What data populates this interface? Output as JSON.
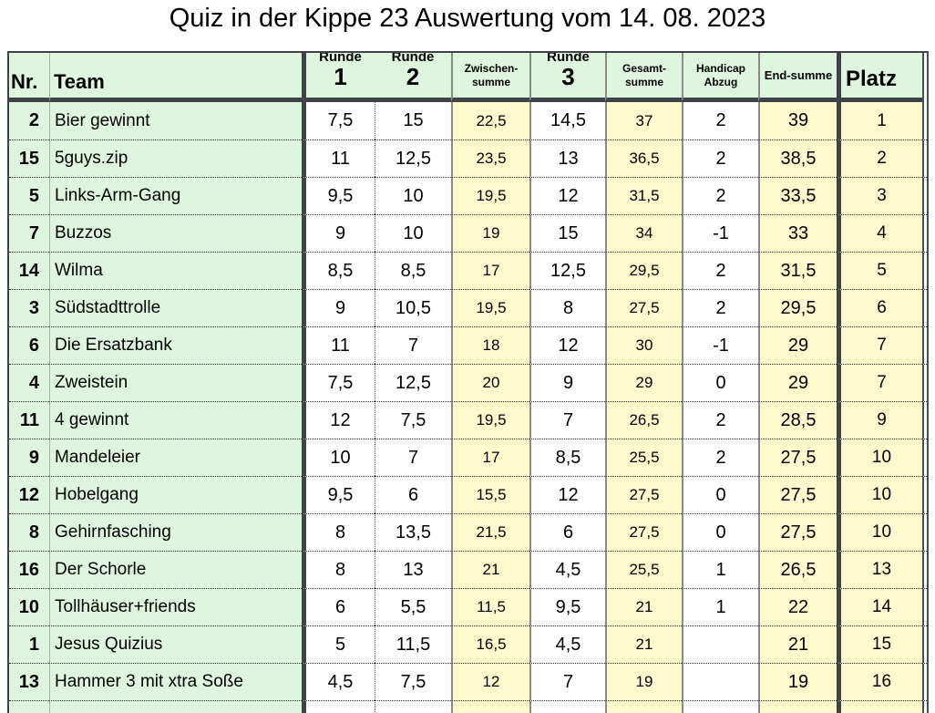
{
  "title": "Quiz in der Kippe 23 Auswertung vom 14. 08. 2023",
  "colors": {
    "header_green": "#ddf6dd",
    "cell_yellow": "#fdfacd",
    "thick_border": "#3f4347"
  },
  "table": {
    "headers": {
      "nr": "Nr.",
      "team": "Team",
      "runde_word": "Runde",
      "runde1_num": "1",
      "runde2_num": "2",
      "runde3_num": "3",
      "zwischen": [
        "Zwischen-",
        "summe"
      ],
      "gesamt": [
        "Gesamt-",
        "summe"
      ],
      "handicap": [
        "Handicap",
        "Abzug"
      ],
      "end": "End-summe",
      "platz": "Platz"
    },
    "col_keys": [
      "nr",
      "team",
      "r1",
      "r2",
      "zw",
      "r3",
      "ges",
      "hand",
      "end",
      "platz"
    ],
    "rows": [
      {
        "nr": "2",
        "team": "Bier gewinnt",
        "r1": "7,5",
        "r2": "15",
        "zw": "22,5",
        "r3": "14,5",
        "ges": "37",
        "hand": "2",
        "end": "39",
        "platz": "1"
      },
      {
        "nr": "15",
        "team": "5guys.zip",
        "r1": "11",
        "r2": "12,5",
        "zw": "23,5",
        "r3": "13",
        "ges": "36,5",
        "hand": "2",
        "end": "38,5",
        "platz": "2"
      },
      {
        "nr": "5",
        "team": "Links-Arm-Gang",
        "r1": "9,5",
        "r2": "10",
        "zw": "19,5",
        "r3": "12",
        "ges": "31,5",
        "hand": "2",
        "end": "33,5",
        "platz": "3"
      },
      {
        "nr": "7",
        "team": "Buzzos",
        "r1": "9",
        "r2": "10",
        "zw": "19",
        "r3": "15",
        "ges": "34",
        "hand": "-1",
        "end": "33",
        "platz": "4"
      },
      {
        "nr": "14",
        "team": "Wilma",
        "r1": "8,5",
        "r2": "8,5",
        "zw": "17",
        "r3": "12,5",
        "ges": "29,5",
        "hand": "2",
        "end": "31,5",
        "platz": "5"
      },
      {
        "nr": "3",
        "team": "Südstadttrolle",
        "r1": "9",
        "r2": "10,5",
        "zw": "19,5",
        "r3": "8",
        "ges": "27,5",
        "hand": "2",
        "end": "29,5",
        "platz": "6"
      },
      {
        "nr": "6",
        "team": "Die Ersatzbank",
        "r1": "11",
        "r2": "7",
        "zw": "18",
        "r3": "12",
        "ges": "30",
        "hand": "-1",
        "end": "29",
        "platz": "7"
      },
      {
        "nr": "4",
        "team": "Zweistein",
        "r1": "7,5",
        "r2": "12,5",
        "zw": "20",
        "r3": "9",
        "ges": "29",
        "hand": "0",
        "end": "29",
        "platz": "7"
      },
      {
        "nr": "11",
        "team": "4 gewinnt",
        "r1": "12",
        "r2": "7,5",
        "zw": "19,5",
        "r3": "7",
        "ges": "26,5",
        "hand": "2",
        "end": "28,5",
        "platz": "9"
      },
      {
        "nr": "9",
        "team": "Mandeleier",
        "r1": "10",
        "r2": "7",
        "zw": "17",
        "r3": "8,5",
        "ges": "25,5",
        "hand": "2",
        "end": "27,5",
        "platz": "10"
      },
      {
        "nr": "12",
        "team": "Hobelgang",
        "r1": "9,5",
        "r2": "6",
        "zw": "15,5",
        "r3": "12",
        "ges": "27,5",
        "hand": "0",
        "end": "27,5",
        "platz": "10"
      },
      {
        "nr": "8",
        "team": "Gehirnfasching",
        "r1": "8",
        "r2": "13,5",
        "zw": "21,5",
        "r3": "6",
        "ges": "27,5",
        "hand": "0",
        "end": "27,5",
        "platz": "10"
      },
      {
        "nr": "16",
        "team": "Der Schorle",
        "r1": "8",
        "r2": "13",
        "zw": "21",
        "r3": "4,5",
        "ges": "25,5",
        "hand": "1",
        "end": "26,5",
        "platz": "13"
      },
      {
        "nr": "10",
        "team": "Tollhäuser+friends",
        "r1": "6",
        "r2": "5,5",
        "zw": "11,5",
        "r3": "9,5",
        "ges": "21",
        "hand": "1",
        "end": "22",
        "platz": "14"
      },
      {
        "nr": "1",
        "team": "Jesus Quizius",
        "r1": "5",
        "r2": "11,5",
        "zw": "16,5",
        "r3": "4,5",
        "ges": "21",
        "hand": "",
        "end": "21",
        "platz": "15"
      },
      {
        "nr": "13",
        "team": "Hammer 3 mit xtra Soße",
        "r1": "4,5",
        "r2": "7,5",
        "zw": "12",
        "r3": "7",
        "ges": "19",
        "hand": "",
        "end": "19",
        "platz": "16"
      }
    ],
    "partial_row_visible": true
  }
}
